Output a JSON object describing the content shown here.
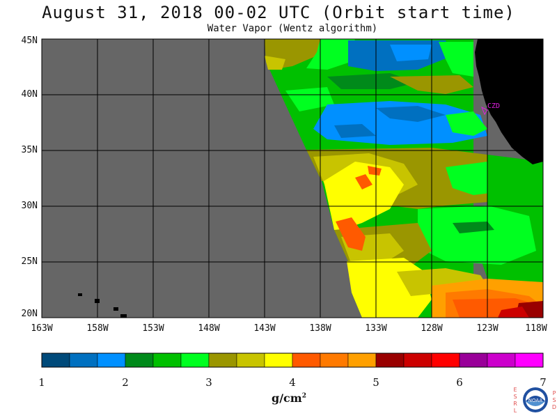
{
  "title": "August 31, 2018  00-02 UTC  (Orbit start time)",
  "subtitle": "Water Vapor (Wentz algorithm)",
  "lat_labels": [
    "45N",
    "40N",
    "35N",
    "30N",
    "25N",
    "20N"
  ],
  "lon_labels": [
    "163W",
    "158W",
    "153W",
    "148W",
    "143W",
    "138W",
    "133W",
    "128W",
    "123W",
    "118W"
  ],
  "station_label": "CZD",
  "colorbar": {
    "tick_labels": [
      "1",
      "2",
      "3",
      "4",
      "5",
      "6",
      "7"
    ],
    "units": "g/cm",
    "units_exp": "2",
    "colors": [
      "#004a7a",
      "#0070c0",
      "#0090ff",
      "#008a1a",
      "#00c000",
      "#00ff20",
      "#9a9600",
      "#c8c400",
      "#ffff00",
      "#ff5a00",
      "#ff7a00",
      "#ffa000",
      "#990000",
      "#cc0000",
      "#ff0000",
      "#990099",
      "#cc00cc",
      "#ff00ff"
    ]
  },
  "logo": {
    "left_letters": [
      "E",
      "S",
      "R",
      "L"
    ],
    "right_letters": [
      "P",
      "S",
      "D"
    ],
    "center_text": "NOAA"
  },
  "colors": {
    "no_data": "#666666",
    "land": "#000000",
    "station": "#e020e0"
  },
  "map_extent": {
    "lon_range": [
      "163W",
      "118W"
    ],
    "lat_range": [
      "20N",
      "45N"
    ]
  }
}
